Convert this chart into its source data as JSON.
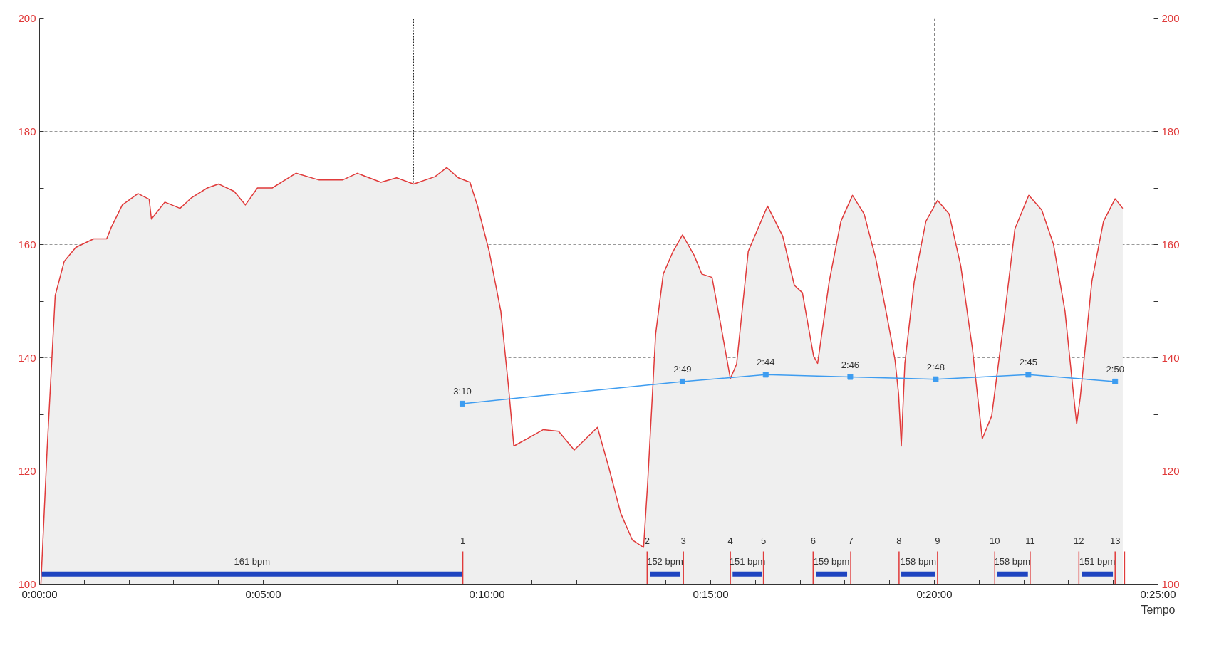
{
  "chart_data": {
    "type": "area",
    "xlabel": "Tempo",
    "xlim": [
      0,
      25
    ],
    "ylim": [
      100,
      200
    ],
    "y2lim": [
      100,
      200
    ],
    "xticks": [
      {
        "value": 0,
        "label": "0:00:00"
      },
      {
        "value": 1,
        "label": null
      },
      {
        "value": 2,
        "label": null
      },
      {
        "value": 3,
        "label": null
      },
      {
        "value": 4,
        "label": null
      },
      {
        "value": 5,
        "label": "0:05:00"
      },
      {
        "value": 6,
        "label": null
      },
      {
        "value": 7,
        "label": null
      },
      {
        "value": 8,
        "label": null
      },
      {
        "value": 9,
        "label": null
      },
      {
        "value": 10,
        "label": "0:10:00"
      },
      {
        "value": 11,
        "label": null
      },
      {
        "value": 12,
        "label": null
      },
      {
        "value": 13,
        "label": null
      },
      {
        "value": 14,
        "label": null
      },
      {
        "value": 15,
        "label": "0:15:00"
      },
      {
        "value": 16,
        "label": null
      },
      {
        "value": 17,
        "label": null
      },
      {
        "value": 18,
        "label": null
      },
      {
        "value": 19,
        "label": null
      },
      {
        "value": 20,
        "label": "0:20:00"
      },
      {
        "value": 21,
        "label": null
      },
      {
        "value": 22,
        "label": null
      },
      {
        "value": 23,
        "label": null
      },
      {
        "value": 24,
        "label": null
      },
      {
        "value": 25,
        "label": "0:25:00"
      }
    ],
    "yticks": [
      100,
      {
        "value": 110,
        "label": null
      },
      120,
      {
        "value": 130,
        "label": null
      },
      140,
      {
        "value": 150,
        "label": null
      },
      160,
      {
        "value": 170,
        "label": null
      },
      180,
      {
        "value": 190,
        "label": null
      },
      200
    ],
    "y2ticks": [
      100,
      {
        "value": 110,
        "label": null
      },
      120,
      {
        "value": 130,
        "label": null
      },
      140,
      {
        "value": 150,
        "label": null
      },
      160,
      {
        "value": 170,
        "label": null
      },
      180,
      {
        "value": 190,
        "label": null
      },
      200
    ],
    "grid": "y",
    "line_style": "solid",
    "series": [
      {
        "color": "#e03a3a",
        "x": [
          0.03,
          0.17,
          0.35,
          0.55,
          0.81,
          1.21,
          1.5,
          1.6,
          1.85,
          2.2,
          2.45,
          2.5,
          2.8,
          3.14,
          3.4,
          3.75,
          4.0,
          4.35,
          4.6,
          4.87,
          5.2,
          5.73,
          6.25,
          6.77,
          7.1,
          7.63,
          7.98,
          8.36,
          8.84,
          9.1,
          9.36,
          9.62,
          9.79,
          10.05,
          10.31,
          10.48,
          10.6,
          10.9,
          11.26,
          11.6,
          11.95,
          12.47,
          12.73,
          12.99,
          13.25,
          13.5,
          13.59,
          13.77,
          13.94,
          14.16,
          14.37,
          14.63,
          14.8,
          15.03,
          15.23,
          15.44,
          15.58,
          15.84,
          16.27,
          16.61,
          16.87,
          17.05,
          17.3,
          17.39,
          17.65,
          17.91,
          18.17,
          18.43,
          18.69,
          18.95,
          19.12,
          19.2,
          19.26,
          19.34,
          19.55,
          19.81,
          20.07,
          20.33,
          20.59,
          20.85,
          21.07,
          21.28,
          21.54,
          21.8,
          22.11,
          22.4,
          22.66,
          22.92,
          23.09,
          23.18,
          23.26,
          23.52,
          23.78,
          24.04,
          24.21
        ],
        "values": [
          100,
          124,
          151,
          157,
          159.5,
          161,
          161,
          163,
          167,
          169,
          168,
          164.5,
          167.5,
          166.4,
          168.3,
          170,
          170.7,
          169.4,
          167,
          170,
          170,
          172.6,
          171.4,
          171.4,
          172.6,
          171,
          171.8,
          170.7,
          172,
          173.6,
          171.8,
          171,
          166.8,
          158.8,
          148.2,
          135,
          124.4,
          125.7,
          127.3,
          127,
          123.7,
          127.7,
          120.4,
          112.5,
          107.8,
          106.5,
          117.7,
          144.2,
          154.8,
          158.8,
          161.7,
          158.1,
          154.8,
          154.2,
          145.6,
          136.3,
          138.9,
          158.8,
          166.8,
          161.5,
          152.8,
          151.5,
          140.3,
          139,
          153.5,
          164.1,
          168.7,
          165.4,
          157.5,
          146.9,
          139.6,
          133.6,
          124.4,
          139,
          153.5,
          164.1,
          167.8,
          165.4,
          156.2,
          141.6,
          125.7,
          129.7,
          145.6,
          162.8,
          168.7,
          166.1,
          160.1,
          148.2,
          135,
          128.3,
          133,
          153.5,
          164.1,
          168.1,
          166.4
        ]
      },
      {
        "type": "line",
        "color": "#3d9cf0",
        "marker": "square",
        "x": [
          9.45,
          14.37,
          16.23,
          18.12,
          20.03,
          22.1,
          24.04
        ],
        "values": [
          131.9,
          135.8,
          137,
          136.6,
          136.2,
          137,
          135.8
        ]
      },
      {
        "type": "line",
        "color": "#e03a3a",
        "x": [
          9.46,
          9.46,
          null,
          13.58,
          13.58,
          null,
          14.39,
          14.39,
          null,
          15.44,
          15.44,
          null,
          16.18,
          16.18,
          null,
          17.29,
          17.29,
          null,
          18.13,
          18.13,
          null,
          19.21,
          19.21,
          null,
          20.07,
          20.07,
          null,
          21.35,
          21.35,
          null,
          22.14,
          22.14,
          null,
          23.23,
          23.23,
          null,
          24.04,
          24.04,
          null,
          24.25,
          24.25
        ],
        "values": [
          100,
          105.8,
          null,
          100,
          105.8,
          null,
          100,
          105.8,
          null,
          100,
          105.8,
          null,
          100,
          105.8,
          null,
          100,
          105.8,
          null,
          100,
          105.8,
          null,
          100,
          105.8,
          null,
          100,
          105.8,
          null,
          100,
          105.8,
          null,
          100,
          105.8,
          null,
          100,
          105.8,
          null,
          100,
          105.8,
          null,
          100,
          105.8
        ]
      },
      {
        "type": "step",
        "color": "#1f45c0",
        "x": [
          0.05,
          9.45,
          null,
          13.64,
          14.32,
          null,
          15.49,
          16.15,
          null,
          17.36,
          18.05,
          null,
          19.26,
          20.02,
          null,
          21.4,
          22.09,
          null,
          23.3,
          23.99
        ],
        "values": [
          101.8,
          101.8,
          null,
          101.8,
          101.8,
          null,
          101.8,
          101.8,
          null,
          101.8,
          101.8,
          null,
          101.8,
          101.8,
          null,
          101.8,
          101.8,
          null,
          101.8,
          101.8
        ]
      }
    ],
    "annotations": [
      {
        "text": "3:10",
        "x": 9.45,
        "y": 131.9
      },
      {
        "text": "2:49",
        "x": 14.37,
        "y": 135.8
      },
      {
        "text": "2:44",
        "x": 16.23,
        "y": 137
      },
      {
        "text": "2:46",
        "x": 18.12,
        "y": 136.6
      },
      {
        "text": "2:48",
        "x": 20.03,
        "y": 136.2
      },
      {
        "text": "2:45",
        "x": 22.1,
        "y": 137
      },
      {
        "text": "2:50",
        "x": 24.04,
        "y": 135.8
      },
      {
        "text": "1",
        "x": 9.46,
        "y": 105.8
      },
      {
        "text": "2",
        "x": 13.58,
        "y": 105.8
      },
      {
        "text": "3",
        "x": 14.39,
        "y": 105.8
      },
      {
        "text": "4",
        "x": 15.44,
        "y": 105.8
      },
      {
        "text": "5",
        "x": 16.18,
        "y": 105.8
      },
      {
        "text": "6",
        "x": 17.29,
        "y": 105.8
      },
      {
        "text": "7",
        "x": 18.13,
        "y": 105.8
      },
      {
        "text": "8",
        "x": 19.21,
        "y": 105.8
      },
      {
        "text": "9",
        "x": 20.07,
        "y": 105.8
      },
      {
        "text": "10",
        "x": 21.35,
        "y": 105.8
      },
      {
        "text": "11",
        "x": 22.14,
        "y": 105.8
      },
      {
        "text": "12",
        "x": 23.23,
        "y": 105.8
      },
      {
        "text": "13",
        "x": 24.04,
        "y": 105.8
      },
      {
        "text": "161 bpm",
        "x": 4.75,
        "y": 101.8
      },
      {
        "text": "152 bpm",
        "x": 13.98,
        "y": 101.8
      },
      {
        "text": "151 bpm",
        "x": 15.82,
        "y": 101.8
      },
      {
        "text": "159 bpm",
        "x": 17.7,
        "y": 101.8
      },
      {
        "text": "158 bpm",
        "x": 19.64,
        "y": 101.8
      },
      {
        "text": "158 bpm",
        "x": 21.74,
        "y": 101.8
      },
      {
        "text": "151 bpm",
        "x": 23.64,
        "y": 101.8
      }
    ],
    "ref_lines": [
      {
        "axis": "x",
        "value": 10,
        "color": "#888888",
        "line_style": "dashed"
      },
      {
        "axis": "x",
        "value": 20,
        "color": "#888888",
        "line_style": "dashed"
      },
      {
        "axis": "x",
        "value": 8.36,
        "color": "#222222",
        "line_style": "dotted"
      }
    ]
  }
}
